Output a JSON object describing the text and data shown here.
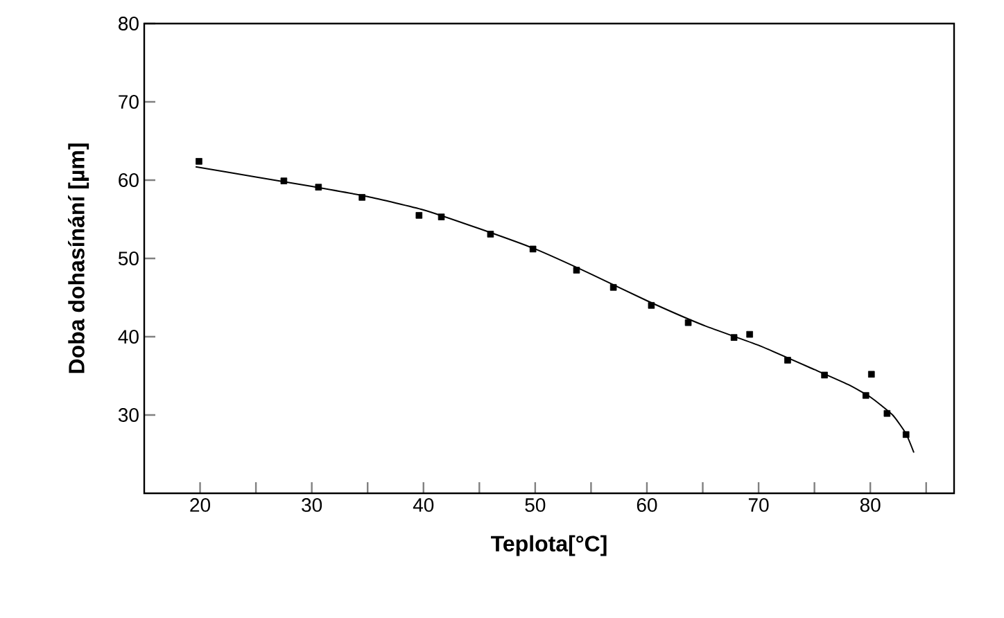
{
  "chart_data": {
    "type": "scatter",
    "xlabel": "Teplota[°C]",
    "ylabel": "Doba dohasínání [µm]",
    "xlim": [
      15,
      87.5
    ],
    "ylim": [
      20,
      80
    ],
    "xticks": [
      20,
      {
        "value": 25,
        "label": null
      },
      30,
      {
        "value": 35,
        "label": null
      },
      40,
      {
        "value": 45,
        "label": null
      },
      50,
      {
        "value": 55,
        "label": null
      },
      60,
      {
        "value": 65,
        "label": null
      },
      70,
      {
        "value": 75,
        "label": null
      },
      80,
      {
        "value": 85,
        "label": null
      }
    ],
    "yticks": [
      30,
      40,
      50,
      60,
      70,
      80
    ],
    "grid": false,
    "series": [
      {
        "marker": "square",
        "color": "#000000",
        "x": [
          19.9,
          27.5,
          30.6,
          34.5,
          39.6,
          41.6,
          46.0,
          49.8,
          53.7,
          57.0,
          60.4,
          63.7,
          67.8,
          69.2,
          72.6,
          75.9,
          79.6,
          80.1,
          81.5,
          83.2
        ],
        "values": [
          62.4,
          59.9,
          59.1,
          57.8,
          55.5,
          55.3,
          53.1,
          51.2,
          48.5,
          46.3,
          44.0,
          41.8,
          39.9,
          40.3,
          37.0,
          35.1,
          32.5,
          35.2,
          30.2,
          27.5
        ]
      },
      {
        "type": "line",
        "marker": "none",
        "line_style": "solid",
        "color": "#000000",
        "x": [
          19.6,
          25,
          30,
          35,
          40,
          45,
          50,
          55,
          60,
          65,
          70,
          75,
          78,
          80,
          82,
          83.2,
          83.9
        ],
        "values": [
          61.7,
          60.4,
          59.2,
          57.9,
          56.2,
          53.8,
          51.2,
          48.0,
          44.6,
          41.5,
          38.9,
          35.8,
          33.9,
          32.3,
          30.0,
          27.6,
          25.2
        ]
      }
    ]
  }
}
